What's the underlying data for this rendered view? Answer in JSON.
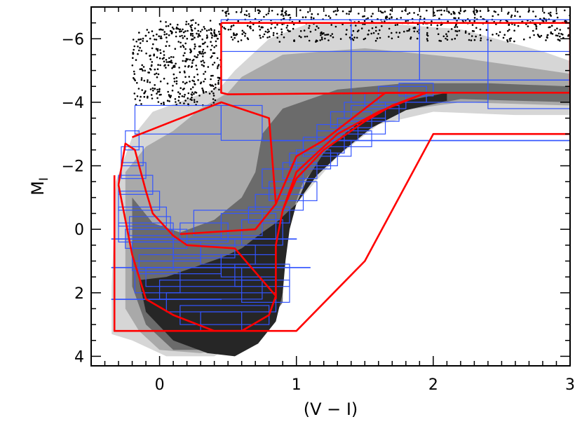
{
  "chart_data": {
    "type": "scatter",
    "title": "",
    "xlabel": "(V − I)",
    "ylabel_main": "M",
    "ylabel_sub": "I",
    "xlim": [
      -0.5,
      3.0
    ],
    "ylim": [
      4.3,
      -7.0
    ],
    "y_inverted": true,
    "x_ticks": [
      {
        "value": 0,
        "label": "0"
      },
      {
        "value": 1,
        "label": "1"
      },
      {
        "value": 2,
        "label": "2"
      },
      {
        "value": 3,
        "label": "3"
      }
    ],
    "y_ticks": [
      {
        "value": -6,
        "label": "−6"
      },
      {
        "value": -4,
        "label": "−4"
      },
      {
        "value": -2,
        "label": "−2"
      },
      {
        "value": 0,
        "label": "0"
      },
      {
        "value": 2,
        "label": "2"
      },
      {
        "value": 4,
        "label": "4"
      }
    ],
    "x_minor_step": 0.1,
    "y_minor_step": 0.5,
    "density_levels": [
      {
        "name": "outer",
        "color": "#d6d6d6"
      },
      {
        "name": "mid",
        "color": "#a9a9a9"
      },
      {
        "name": "inner",
        "color": "#6b6b6b"
      },
      {
        "name": "core",
        "color": "#262626"
      }
    ],
    "density_regions": [
      {
        "level": "outer",
        "points": [
          [
            -0.35,
            3.3
          ],
          [
            -0.35,
            1.8
          ],
          [
            -0.32,
            -1.5
          ],
          [
            -0.2,
            -2.9
          ],
          [
            -0.05,
            -3.7
          ],
          [
            0.2,
            -4.1
          ],
          [
            0.45,
            -4.5
          ],
          [
            0.55,
            -5.0
          ],
          [
            0.8,
            -6.0
          ],
          [
            1.1,
            -6.5
          ],
          [
            1.6,
            -6.5
          ],
          [
            2.2,
            -6.3
          ],
          [
            2.8,
            -5.6
          ],
          [
            3.0,
            -5.3
          ],
          [
            3.0,
            -3.6
          ],
          [
            2.6,
            -3.6
          ],
          [
            2.0,
            -3.7
          ],
          [
            1.6,
            -3.3
          ],
          [
            1.3,
            -2.3
          ],
          [
            1.1,
            -1.3
          ],
          [
            0.9,
            -0.3
          ],
          [
            0.8,
            1.2
          ],
          [
            0.8,
            2.3
          ],
          [
            0.7,
            3.2
          ],
          [
            0.55,
            3.6
          ],
          [
            0.4,
            4.0
          ],
          [
            0.05,
            4.0
          ],
          [
            -0.2,
            3.5
          ]
        ]
      },
      {
        "level": "mid",
        "points": [
          [
            -0.25,
            2.5
          ],
          [
            -0.25,
            -1.8
          ],
          [
            -0.1,
            -2.6
          ],
          [
            0.1,
            -3.1
          ],
          [
            0.3,
            -3.8
          ],
          [
            0.5,
            -4.3
          ],
          [
            0.6,
            -4.8
          ],
          [
            0.9,
            -5.5
          ],
          [
            1.5,
            -5.7
          ],
          [
            2.2,
            -5.4
          ],
          [
            3.0,
            -4.9
          ],
          [
            3.0,
            -3.9
          ],
          [
            2.2,
            -4.0
          ],
          [
            1.7,
            -3.7
          ],
          [
            1.4,
            -2.9
          ],
          [
            1.15,
            -1.8
          ],
          [
            1.0,
            -0.8
          ],
          [
            0.9,
            0.5
          ],
          [
            0.9,
            2.2
          ],
          [
            0.75,
            3.0
          ],
          [
            0.6,
            3.7
          ],
          [
            0.3,
            3.9
          ],
          [
            0.0,
            3.8
          ],
          [
            -0.15,
            3.2
          ]
        ]
      },
      {
        "level": "inner",
        "points": [
          [
            -0.2,
            1.8
          ],
          [
            -0.2,
            -1.0
          ],
          [
            -0.05,
            -0.2
          ],
          [
            0.15,
            0.1
          ],
          [
            0.4,
            -0.3
          ],
          [
            0.6,
            -1.0
          ],
          [
            0.7,
            -1.8
          ],
          [
            0.75,
            -3.0
          ],
          [
            0.9,
            -3.8
          ],
          [
            1.3,
            -4.4
          ],
          [
            1.8,
            -4.6
          ],
          [
            2.4,
            -4.6
          ],
          [
            3.0,
            -4.5
          ],
          [
            3.0,
            -4.0
          ],
          [
            2.2,
            -4.1
          ],
          [
            1.6,
            -3.6
          ],
          [
            1.3,
            -2.7
          ],
          [
            1.05,
            -1.5
          ],
          [
            0.95,
            -0.3
          ],
          [
            0.9,
            1.0
          ],
          [
            0.9,
            2.3
          ],
          [
            0.75,
            3.2
          ],
          [
            0.55,
            3.8
          ],
          [
            0.1,
            3.8
          ],
          [
            -0.1,
            3.0
          ]
        ]
      },
      {
        "level": "core",
        "points": [
          [
            -0.15,
            1.6
          ],
          [
            -0.1,
            2.6
          ],
          [
            0.1,
            3.5
          ],
          [
            0.35,
            3.9
          ],
          [
            0.55,
            4.0
          ],
          [
            0.72,
            3.6
          ],
          [
            0.85,
            2.9
          ],
          [
            0.9,
            2.0
          ],
          [
            0.92,
            1.0
          ],
          [
            0.95,
            0.0
          ],
          [
            1.0,
            -0.8
          ],
          [
            1.08,
            -1.6
          ],
          [
            1.2,
            -2.4
          ],
          [
            1.35,
            -3.0
          ],
          [
            1.5,
            -3.5
          ],
          [
            1.75,
            -4.0
          ],
          [
            2.1,
            -4.3
          ],
          [
            2.1,
            -4.05
          ],
          [
            1.8,
            -3.75
          ],
          [
            1.55,
            -3.2
          ],
          [
            1.35,
            -2.5
          ],
          [
            1.15,
            -1.7
          ],
          [
            1.0,
            -0.8
          ],
          [
            0.85,
            -0.2
          ],
          [
            0.75,
            0.1
          ],
          [
            0.6,
            0.6
          ],
          [
            0.45,
            0.9
          ],
          [
            0.25,
            1.2
          ],
          [
            0.05,
            1.5
          ]
        ]
      }
    ],
    "scatter_regions": [
      {
        "x_range": [
          -0.2,
          0.45
        ],
        "y_range": [
          -6.3,
          -3.9
        ],
        "count": 380
      },
      {
        "x_range": [
          0.45,
          3.0
        ],
        "y_range": [
          -6.9,
          -5.9
        ],
        "count": 520
      },
      {
        "x_range": [
          0.0,
          0.45
        ],
        "y_range": [
          -6.6,
          -6.0
        ],
        "count": 60
      }
    ],
    "scatter_color": "#000000",
    "red_polygons": [
      {
        "name": "upper-right-box",
        "points": [
          [
            0.45,
            -6.5
          ],
          [
            3.0,
            -6.5
          ],
          [
            3.0,
            -4.3
          ],
          [
            1.9,
            -4.3
          ],
          [
            0.5,
            -4.25
          ],
          [
            0.45,
            -4.3
          ],
          [
            0.45,
            -6.5
          ]
        ]
      },
      {
        "name": "blue-loop-region",
        "points": [
          [
            -0.2,
            -2.9
          ],
          [
            0.45,
            -4.0
          ],
          [
            0.8,
            -3.5
          ],
          [
            0.85,
            -0.8
          ],
          [
            0.7,
            0.0
          ],
          [
            0.15,
            0.15
          ]
        ]
      },
      {
        "name": "rgb-branch-inner",
        "points": [
          [
            0.85,
            -0.8
          ],
          [
            1.0,
            -2.3
          ],
          [
            1.2,
            -2.8
          ],
          [
            1.5,
            -3.8
          ],
          [
            1.65,
            -4.3
          ],
          [
            1.95,
            -4.3
          ],
          [
            1.6,
            -3.7
          ],
          [
            1.3,
            -3.0
          ],
          [
            1.0,
            -1.8
          ],
          [
            0.9,
            -0.6
          ],
          [
            0.85,
            0.5
          ],
          [
            0.85,
            2.2
          ]
        ]
      },
      {
        "name": "rgb-branch-outer",
        "points": [
          [
            0.9,
            -0.6
          ],
          [
            1.0,
            -1.6
          ],
          [
            1.2,
            -2.5
          ],
          [
            1.5,
            -3.4
          ],
          [
            1.7,
            -3.9
          ],
          [
            1.95,
            -4.3
          ]
        ]
      },
      {
        "name": "main-sequence",
        "points": [
          [
            -0.3,
            -1.4
          ],
          [
            -0.25,
            -2.7
          ],
          [
            -0.18,
            -2.5
          ],
          [
            -0.1,
            -1.2
          ],
          [
            -0.05,
            -0.5
          ],
          [
            0.1,
            0.2
          ],
          [
            0.2,
            0.5
          ],
          [
            0.55,
            0.6
          ],
          [
            0.85,
            2.1
          ],
          [
            0.8,
            2.7
          ],
          [
            0.6,
            3.2
          ],
          [
            0.4,
            3.2
          ],
          [
            0.1,
            2.7
          ],
          [
            -0.1,
            2.2
          ],
          [
            -0.2,
            0.8
          ],
          [
            -0.3,
            -1.4
          ]
        ]
      },
      {
        "name": "lower-left-box",
        "points": [
          [
            -0.33,
            -1.7
          ],
          [
            -0.33,
            3.2
          ],
          [
            1.0,
            3.2
          ],
          [
            1.5,
            1.0
          ],
          [
            2.0,
            -3.0
          ],
          [
            3.0,
            -3.0
          ]
        ]
      }
    ],
    "red_color": "#ff0000",
    "blue_grid_color": "#3355ff",
    "blue_boxes": [
      [
        0.45,
        -6.6,
        3.0,
        -4.7
      ],
      [
        0.45,
        -6.6,
        1.4,
        -4.7
      ],
      [
        1.4,
        -6.6,
        1.9,
        -4.7
      ],
      [
        1.9,
        -6.6,
        2.4,
        -4.7
      ],
      [
        2.4,
        -6.6,
        3.0,
        -4.7
      ],
      [
        0.45,
        -5.6,
        3.0,
        -4.7
      ],
      [
        1.4,
        -4.7,
        2.4,
        -4.0
      ],
      [
        2.4,
        -4.7,
        3.0,
        -3.8
      ],
      [
        -0.18,
        -3.9,
        0.45,
        -3.0
      ],
      [
        0.45,
        -3.9,
        0.75,
        -2.8
      ],
      [
        0.75,
        -2.8,
        3.0,
        -2.8
      ],
      [
        -0.25,
        -3.1,
        -0.15,
        -2.5
      ],
      [
        -0.28,
        -2.6,
        -0.12,
        -2.0
      ],
      [
        -0.28,
        -2.1,
        -0.1,
        -1.6
      ],
      [
        -0.3,
        -1.7,
        -0.05,
        -1.1
      ],
      [
        -0.3,
        -1.2,
        0.0,
        -0.6
      ],
      [
        -0.3,
        -0.7,
        0.05,
        -0.1
      ],
      [
        -0.3,
        -0.2,
        0.1,
        0.4
      ],
      [
        0.75,
        -1.9,
        1.05,
        -1.3
      ],
      [
        0.8,
        -1.5,
        1.15,
        -0.9
      ],
      [
        0.7,
        -1.1,
        1.05,
        -0.6
      ],
      [
        0.65,
        -0.7,
        0.95,
        -0.2
      ],
      [
        1.0,
        -2.5,
        1.25,
        -1.9
      ],
      [
        1.05,
        -2.9,
        1.35,
        -2.4
      ],
      [
        1.15,
        -3.3,
        1.45,
        -2.8
      ],
      [
        1.25,
        -3.7,
        1.55,
        -3.2
      ],
      [
        1.35,
        -4.0,
        1.65,
        -3.5
      ],
      [
        1.5,
        -4.3,
        1.8,
        -3.8
      ],
      [
        1.6,
        -4.5,
        1.95,
        -4.0
      ],
      [
        1.75,
        -4.6,
        2.0,
        -4.2
      ],
      [
        0.9,
        -2.1,
        1.15,
        -1.6
      ],
      [
        0.95,
        -2.4,
        1.3,
        -2.0
      ],
      [
        1.05,
        -2.8,
        1.4,
        -2.3
      ],
      [
        1.15,
        -3.1,
        1.55,
        -2.6
      ],
      [
        1.3,
        -3.5,
        1.65,
        -3.0
      ],
      [
        1.4,
        -3.9,
        1.75,
        -3.4
      ],
      [
        0.25,
        -0.6,
        0.75,
        0.2
      ],
      [
        0.45,
        -0.5,
        0.85,
        0.3
      ],
      [
        0.6,
        -0.3,
        0.9,
        0.5
      ],
      [
        0.15,
        -0.2,
        0.5,
        0.4
      ],
      [
        -0.35,
        0.3,
        1.0,
        0.3
      ],
      [
        -0.35,
        1.2,
        1.1,
        1.2
      ],
      [
        -0.35,
        2.2,
        0.45,
        2.2
      ],
      [
        -0.25,
        0.0,
        0.2,
        0.6
      ],
      [
        -0.2,
        0.4,
        0.3,
        1.0
      ],
      [
        -0.15,
        0.8,
        0.45,
        1.4
      ],
      [
        -0.1,
        1.2,
        0.6,
        1.8
      ],
      [
        0.0,
        1.6,
        0.75,
        2.2
      ],
      [
        0.05,
        2.0,
        0.85,
        2.6
      ],
      [
        0.15,
        2.4,
        0.8,
        3.0
      ],
      [
        0.3,
        2.6,
        0.6,
        3.2
      ],
      [
        0.1,
        0.3,
        0.55,
        0.9
      ],
      [
        0.3,
        0.5,
        0.7,
        1.1
      ],
      [
        0.45,
        0.8,
        0.85,
        1.5
      ],
      [
        0.55,
        1.1,
        0.95,
        1.8
      ],
      [
        0.6,
        1.6,
        0.95,
        2.3
      ],
      [
        -0.22,
        -0.4,
        0.08,
        0.2
      ],
      [
        -0.2,
        0.6,
        0.1,
        1.3
      ],
      [
        -0.18,
        1.3,
        0.15,
        2.0
      ]
    ]
  }
}
